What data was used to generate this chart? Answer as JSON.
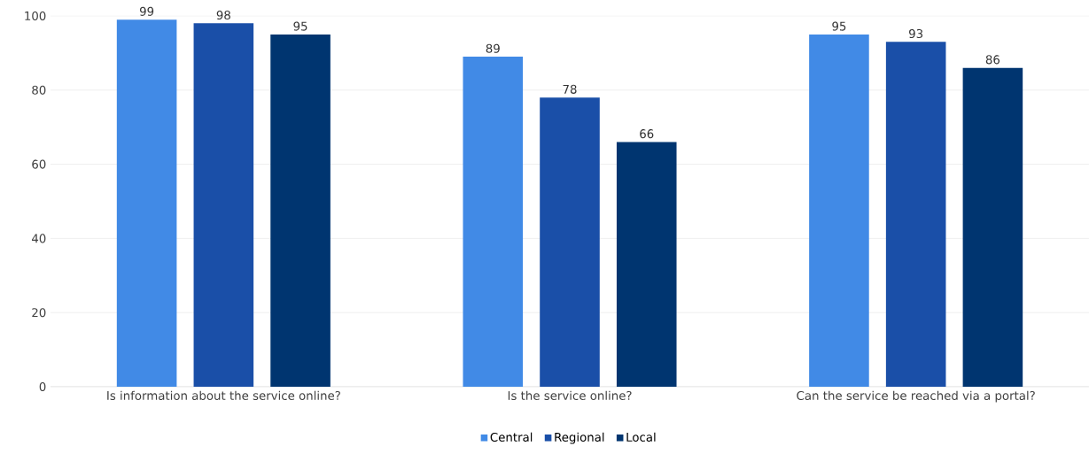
{
  "chart_data": {
    "type": "bar",
    "categories": [
      "Is information about the service online?",
      "Is the service online?",
      "Can the service be reached via a portal?"
    ],
    "series": [
      {
        "name": "Central",
        "color": "#418ae6",
        "values": [
          99,
          89,
          95
        ]
      },
      {
        "name": "Regional",
        "color": "#1a4fa8",
        "values": [
          98,
          78,
          93
        ]
      },
      {
        "name": "Local",
        "color": "#003570",
        "values": [
          95,
          66,
          86
        ]
      }
    ],
    "ylim": [
      0,
      100
    ],
    "yticks": [
      0,
      20,
      40,
      60,
      80,
      100
    ],
    "grid": "y",
    "legend": "bottom",
    "data_labels": true
  }
}
